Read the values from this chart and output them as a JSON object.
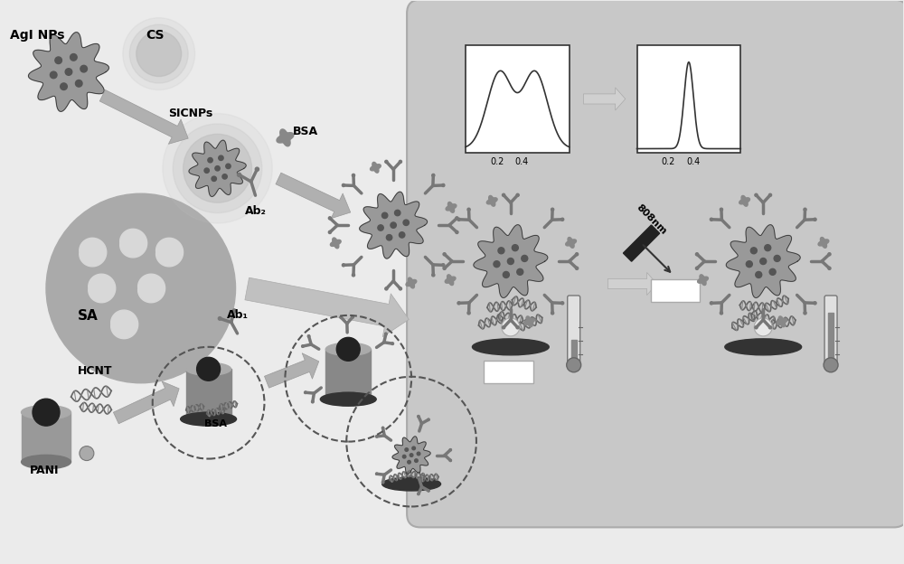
{
  "bg_color": "#ebebeb",
  "panel_bg": "#c8c8c8",
  "fig_width": 10.0,
  "fig_height": 6.24,
  "dpi": 100,
  "labels": {
    "AgI_NPs": "AgI NPs",
    "CS": "CS",
    "SICNPs": "SICNPs",
    "BSA": "BSA",
    "Ab2": "Ab₂",
    "SA": "SA",
    "Ab1": "Ab₁",
    "HCNT": "HCNT",
    "PANI": "PANI",
    "BSA2": "BSA",
    "laser": "808nm"
  },
  "axis_labels": [
    "0.2",
    "0.4"
  ],
  "arrow_color": "#aaaaaa",
  "dark": "#444444",
  "med_gray": "#888888",
  "light_gray": "#bbbbbb",
  "nanoparticle_color": "#888888",
  "outline_color": "#333333",
  "sa_color": "#aaaaaa",
  "electrode_dark": "#555555",
  "electrode_mid": "#888888",
  "electrode_light": "#bbbbbb"
}
